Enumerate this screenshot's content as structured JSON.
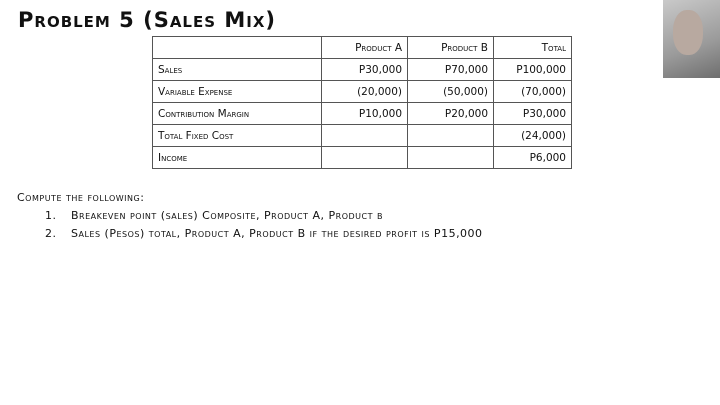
{
  "title": "Problem 5 (Sales Mix)",
  "table": {
    "headers": [
      "",
      "Product A",
      "Product B",
      "Total"
    ],
    "rows": [
      {
        "label": "Sales",
        "a": "P30,000",
        "b": "P70,000",
        "total": "P100,000"
      },
      {
        "label": "Variable Expense",
        "a": "(20,000)",
        "b": "(50,000)",
        "total": "(70,000)"
      },
      {
        "label": "Contribution Margin",
        "a": "P10,000",
        "b": "P20,000",
        "total": "P30,000"
      },
      {
        "label": "Total Fixed Cost",
        "a": "",
        "b": "",
        "total": "(24,000)"
      },
      {
        "label": "Income",
        "a": "",
        "b": "",
        "total": "P6,000"
      }
    ]
  },
  "instructions": {
    "heading": "Compute the following:",
    "items": [
      {
        "num": "1.",
        "text": "Breakeven point (sales) Composite, Product A, Product b"
      },
      {
        "num": "2.",
        "text": "Sales (Pesos) total, Product A, Product B if the desired profit is P15,000"
      }
    ]
  }
}
